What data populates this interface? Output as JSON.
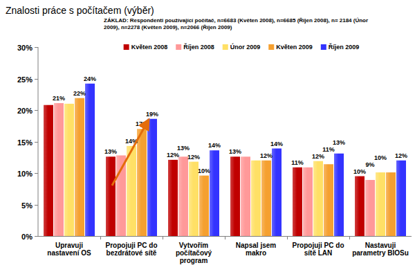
{
  "chart_data": {
    "type": "bar",
    "title": "Znalosti práce s počítačem (výběr)",
    "subtitle": "ZÁKLAD: Respondenti používající počítač, n=6683 (Květen 2008), n=6685 (Říjen 2008), n= 2184 (Únor 2009), n=2278 (Květen 2009), n=2066 (Říjen 2009)",
    "categories": [
      "Upravuji nastavení OS",
      "Propojuji PC do bezdrátové sítě",
      "Vytvořím počítačový program",
      "Napsal jsem makro",
      "Propojuji PC do sítě LAN",
      "Nastavuji parametry BIOSu"
    ],
    "series": [
      {
        "name": "Květen 2008",
        "color": "#c00000",
        "values": [
          20.8,
          12.6,
          12.1,
          12.6,
          10.9,
          9.5
        ],
        "value_labels": [
          null,
          "13%",
          "12%",
          "13%",
          "11%",
          "10%"
        ]
      },
      {
        "name": "Říjen 2008",
        "color": "#ff9999",
        "values": [
          21.1,
          12.8,
          12.6,
          12.6,
          10.9,
          8.9
        ],
        "value_labels": [
          "21%",
          null,
          "13%",
          null,
          null,
          "9%"
        ]
      },
      {
        "name": "Únor 2009",
        "color": "#ffe066",
        "values": [
          21.0,
          14.3,
          11.8,
          12.0,
          11.9,
          10.1
        ],
        "value_labels": [
          null,
          "14%",
          "12%",
          null,
          "12%",
          "10%"
        ]
      },
      {
        "name": "Květen 2009",
        "color": "#f5a030",
        "values": [
          21.9,
          17.0,
          9.6,
          12.0,
          11.4,
          10.1
        ],
        "value_labels": [
          "22%",
          "17%",
          "10%",
          "12%",
          "11%",
          null
        ]
      },
      {
        "name": "Říjen 2009",
        "color": "#3333ff",
        "values": [
          24.2,
          18.6,
          13.6,
          13.9,
          13.1,
          12.0
        ],
        "value_labels": [
          "24%",
          "19%",
          "14%",
          "14%",
          "13%",
          "12%"
        ]
      }
    ],
    "ylim": [
      0,
      30
    ],
    "yticks": [
      {
        "value": 0,
        "label": "0%"
      },
      {
        "value": 5,
        "label": "5%"
      },
      {
        "value": 10,
        "label": "10%"
      },
      {
        "value": 15,
        "label": "15%"
      },
      {
        "value": 20,
        "label": "20%"
      },
      {
        "value": 25,
        "label": "25%"
      },
      {
        "value": 30,
        "label": "30%"
      }
    ],
    "grid": false,
    "legend": "top",
    "data_labels": true
  }
}
